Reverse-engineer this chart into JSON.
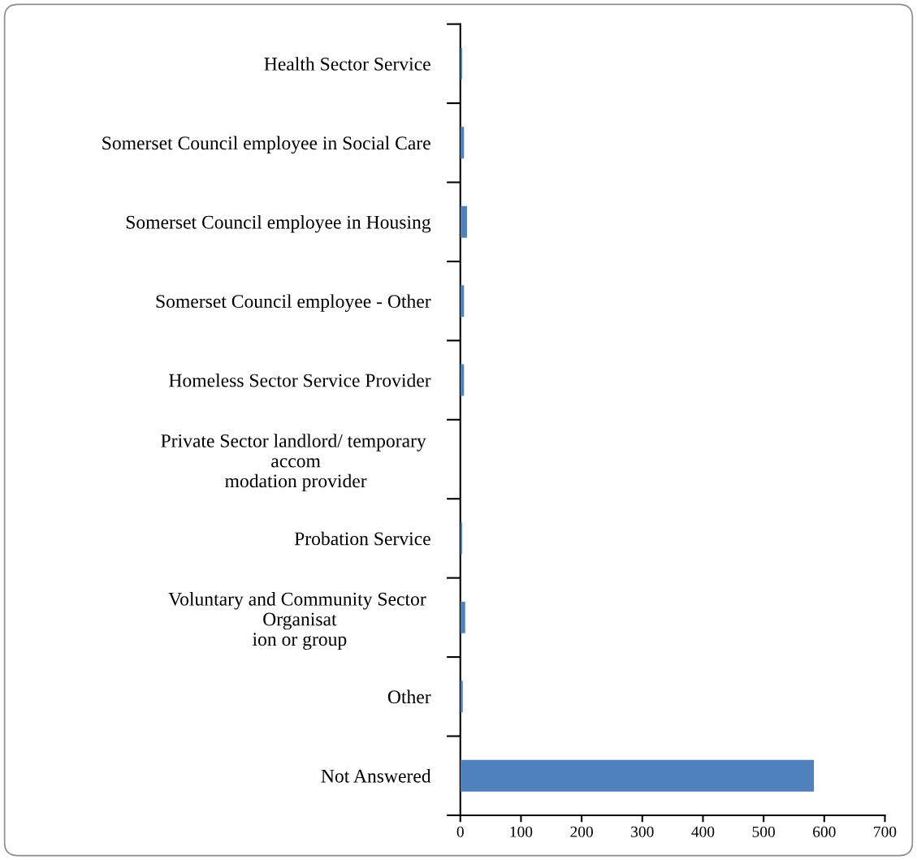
{
  "chart_data": {
    "type": "bar",
    "orientation": "horizontal",
    "categories": [
      "Health Sector Service",
      "Somerset Council employee in Social Care",
      "Somerset Council employee in Housing",
      "Somerset Council employee - Other",
      "Homeless Sector Service Provider",
      "Private Sector landlord/ temporary \naccom\nmodation provider",
      "Probation Service",
      "Voluntary and Community Sector \nOrganisat\nion or group",
      "Other",
      "Not Answered"
    ],
    "values": [
      3,
      6,
      11,
      6,
      6,
      0,
      3,
      8,
      4,
      583
    ],
    "color": "#4f81bd",
    "xlim": [
      0,
      700
    ],
    "xticks": [
      0,
      100,
      200,
      300,
      400,
      500,
      600,
      700
    ],
    "grid": false,
    "legend": false
  }
}
